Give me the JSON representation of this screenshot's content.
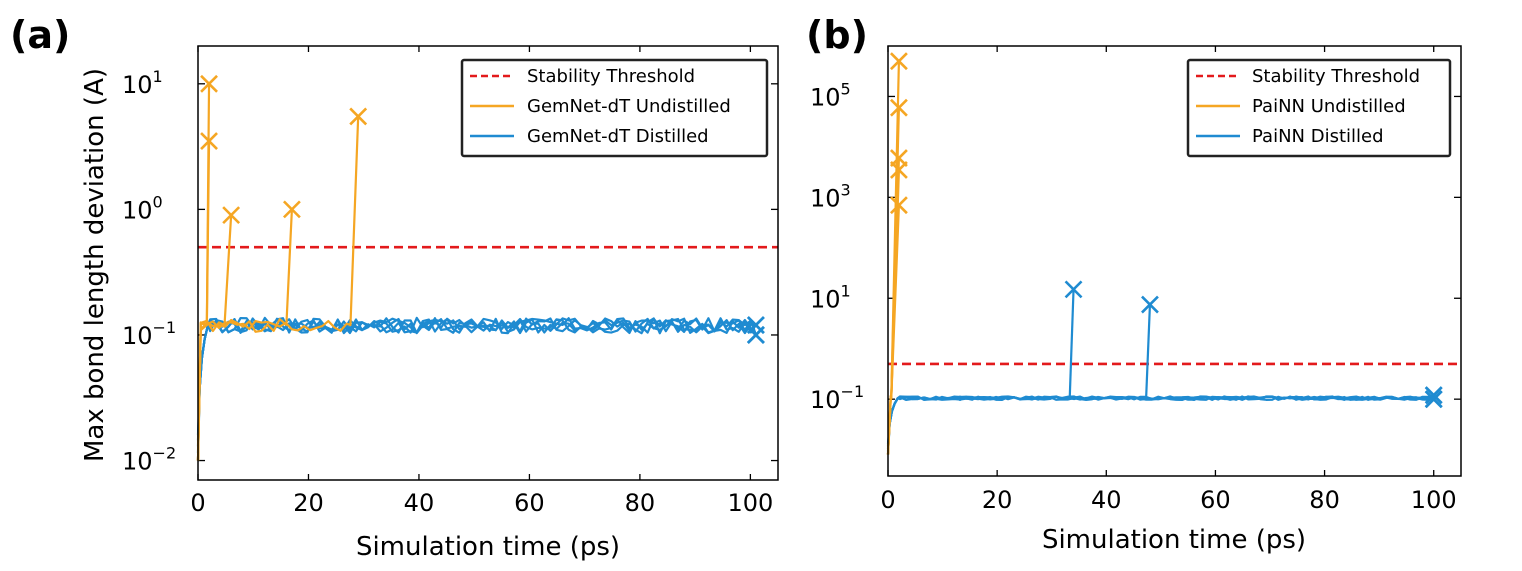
{
  "figure": {
    "panels": [
      "(a)",
      "(b)"
    ]
  },
  "chart_data": [
    {
      "type": "line",
      "panel_label": "(a)",
      "title": "",
      "xlabel": "Simulation time (ps)",
      "ylabel": "Max bond length deviation (A)",
      "yscale": "log",
      "xlim": [
        0,
        105
      ],
      "ylim": [
        0.007,
        20
      ],
      "xticks": [
        0,
        20,
        40,
        60,
        80,
        100
      ],
      "xtick_labels": [
        "0",
        "20",
        "40",
        "60",
        "80",
        "100"
      ],
      "yticks": [
        0.01,
        0.1,
        1,
        10
      ],
      "ytick_labels": [
        {
          "base": "10",
          "exp": "−2"
        },
        {
          "base": "10",
          "exp": "−1"
        },
        {
          "base": "10",
          "exp": "0"
        },
        {
          "base": "10",
          "exp": "1"
        }
      ],
      "threshold": 0.5,
      "legend_position": "top-right",
      "legend": [
        {
          "label": "Stability Threshold",
          "style": "dashed",
          "color": "#e31a1c"
        },
        {
          "label": "GemNet-dT Undistilled",
          "style": "solid",
          "color": "#f5a623"
        },
        {
          "label": "GemNet-dT Distilled",
          "style": "solid",
          "color": "#1f8bd1"
        }
      ],
      "undistilled_failures": [
        {
          "x_end": 2.0,
          "y_end": 10,
          "x_start": 1.6
        },
        {
          "x_end": 2.0,
          "y_end": 3.5,
          "x_start": 1.6
        },
        {
          "x_end": 6.0,
          "y_end": 0.9,
          "x_start": 4.8
        },
        {
          "x_end": 17.0,
          "y_end": 1.0,
          "x_start": 16.0
        },
        {
          "x_end": 29.0,
          "y_end": 5.5,
          "x_start": 27.6
        }
      ],
      "distilled": {
        "n_runs": 5,
        "start": 0.01,
        "plateau": 0.12,
        "end_x": 101,
        "end_markers_y": [
          0.1,
          0.12
        ]
      }
    },
    {
      "type": "line",
      "panel_label": "(b)",
      "title": "",
      "xlabel": "Simulation time (ps)",
      "ylabel": "",
      "yscale": "log",
      "xlim": [
        0,
        105
      ],
      "ylim": [
        0.003,
        1000000
      ],
      "xticks": [
        0,
        20,
        40,
        60,
        80,
        100
      ],
      "xtick_labels": [
        "0",
        "20",
        "40",
        "60",
        "80",
        "100"
      ],
      "yticks": [
        0.1,
        10,
        1000,
        100000
      ],
      "ytick_labels": [
        {
          "base": "10",
          "exp": "−1"
        },
        {
          "base": "10",
          "exp": "1"
        },
        {
          "base": "10",
          "exp": "3"
        },
        {
          "base": "10",
          "exp": "5"
        }
      ],
      "threshold": 0.5,
      "legend_position": "top-right",
      "legend": [
        {
          "label": "Stability Threshold",
          "style": "dashed",
          "color": "#e31a1c"
        },
        {
          "label": "PaiNN Undistilled",
          "style": "solid",
          "color": "#f5a623"
        },
        {
          "label": "PaiNN Distilled",
          "style": "solid",
          "color": "#1f8bd1"
        }
      ],
      "undistilled_failures": [
        {
          "x_end": 2.0,
          "y_end": 500000,
          "x_start": 0.6
        },
        {
          "x_end": 2.0,
          "y_end": 60000,
          "x_start": 0.6
        },
        {
          "x_end": 2.0,
          "y_end": 6000,
          "x_start": 0.6
        },
        {
          "x_end": 2.0,
          "y_end": 3500,
          "x_start": 0.6
        },
        {
          "x_end": 2.0,
          "y_end": 700,
          "x_start": 0.6
        }
      ],
      "distilled_failures": [
        {
          "x_end": 34,
          "y_end": 15,
          "x_start": 33.3
        },
        {
          "x_end": 48,
          "y_end": 7.5,
          "x_start": 47.3
        }
      ],
      "distilled": {
        "n_runs": 5,
        "start": 0.008,
        "plateau": 0.105,
        "end_x": 100,
        "end_markers_y": [
          0.1,
          0.12
        ]
      }
    }
  ]
}
